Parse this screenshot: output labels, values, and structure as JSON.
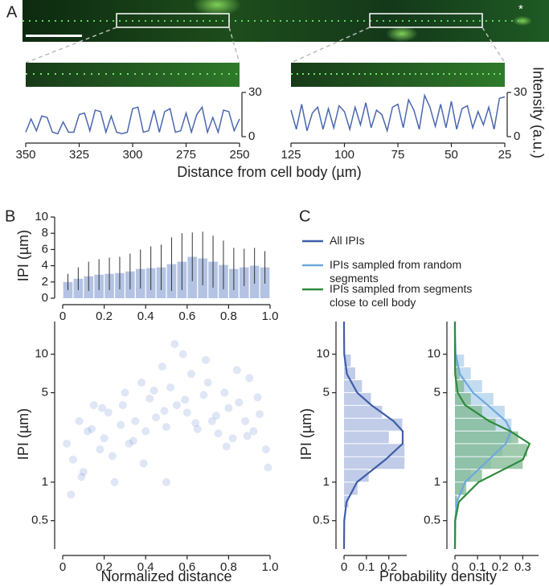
{
  "chart_data": [
    {
      "type": "line",
      "panel": "A",
      "annotation": "*",
      "xlabel": "Distance from cell body (µm)",
      "color": "#4a67b0",
      "x": [
        350,
        347.5,
        345,
        342.5,
        340,
        337.5,
        335,
        332.5,
        330,
        327.5,
        325,
        322.5,
        320,
        317.5,
        315,
        312.5,
        310,
        307.5,
        305,
        302.5,
        300,
        297.5,
        295,
        292.5,
        290,
        287.5,
        285,
        282.5,
        280,
        277.5,
        275,
        272.5,
        270,
        267.5,
        265,
        262.5,
        260,
        257.5,
        255,
        252.5,
        250
      ],
      "values": [
        3,
        12,
        4,
        14,
        13,
        3,
        2,
        10,
        3,
        3,
        15,
        16,
        4,
        18,
        17,
        3,
        14,
        3,
        2,
        3,
        19,
        20,
        3,
        4,
        18,
        3,
        17,
        19,
        3,
        4,
        16,
        3,
        15,
        20,
        3,
        13,
        3,
        18,
        17,
        4,
        12
      ],
      "xlim": [
        350,
        250
      ],
      "xticks": [
        350,
        325,
        300,
        275,
        250
      ],
      "ylim": [
        0,
        30
      ],
      "yticks": [
        0,
        30
      ]
    },
    {
      "type": "line",
      "ylabel": "Intensity (a.u.)",
      "color": "#4a67b0",
      "x": [
        125,
        122.5,
        120,
        117.5,
        115,
        112.5,
        110,
        107.5,
        105,
        102.5,
        100,
        97.5,
        95,
        92.5,
        90,
        87.5,
        85,
        82.5,
        80,
        77.5,
        75,
        72.5,
        70,
        67.5,
        65,
        62.5,
        60,
        57.5,
        55,
        52.5,
        50,
        47.5,
        45,
        42.5,
        40,
        37.5,
        35,
        32.5,
        30,
        27.5,
        25
      ],
      "values": [
        18,
        5,
        22,
        4,
        16,
        20,
        5,
        19,
        6,
        21,
        17,
        5,
        20,
        8,
        23,
        6,
        18,
        15,
        4,
        20,
        22,
        6,
        25,
        18,
        5,
        28,
        20,
        7,
        22,
        6,
        24,
        5,
        19,
        21,
        6,
        17,
        8,
        20,
        5,
        26,
        27
      ],
      "xlim": [
        125,
        25
      ],
      "xticks": [
        125,
        100,
        75,
        50,
        25
      ],
      "ylim": [
        0,
        30
      ],
      "yticks": [
        0,
        30
      ]
    },
    {
      "type": "bar",
      "panel": "B",
      "ylabel": "IPI (µm)",
      "color": "#b4c3e3",
      "error_color": "#333333",
      "x": [
        0.025,
        0.075,
        0.125,
        0.175,
        0.225,
        0.275,
        0.325,
        0.375,
        0.425,
        0.475,
        0.525,
        0.575,
        0.625,
        0.675,
        0.725,
        0.775,
        0.825,
        0.875,
        0.925,
        0.975
      ],
      "values": [
        2.0,
        2.4,
        2.7,
        2.9,
        3.0,
        3.1,
        3.3,
        3.6,
        3.7,
        3.8,
        4.2,
        4.5,
        5.1,
        4.9,
        4.5,
        4.1,
        3.6,
        3.8,
        4.0,
        3.8
      ],
      "errors": [
        1.0,
        1.4,
        1.8,
        1.9,
        2.0,
        2.0,
        2.2,
        2.4,
        2.7,
        2.8,
        3.3,
        3.5,
        3.0,
        3.3,
        3.2,
        3.0,
        2.6,
        2.3,
        2.2,
        2.0
      ],
      "xlim": [
        0,
        1
      ],
      "xticks": [
        0,
        0.2,
        0.4,
        0.6,
        0.8,
        {
          "value": 1,
          "label": "1.0"
        }
      ],
      "ylim": [
        0,
        10
      ],
      "yticks": [
        0,
        2,
        4,
        6,
        8,
        10
      ]
    },
    {
      "type": "scatter",
      "xlabel": "Normalized distance",
      "ylabel": "IPI (µm)",
      "color": "#6f8bd0",
      "ylog": true,
      "x": [
        0.02,
        0.05,
        0.08,
        0.1,
        0.12,
        0.15,
        0.18,
        0.2,
        0.22,
        0.25,
        0.28,
        0.3,
        0.32,
        0.35,
        0.38,
        0.4,
        0.42,
        0.45,
        0.48,
        0.5,
        0.52,
        0.55,
        0.58,
        0.6,
        0.62,
        0.65,
        0.68,
        0.7,
        0.72,
        0.75,
        0.78,
        0.8,
        0.82,
        0.85,
        0.88,
        0.9,
        0.92,
        0.95,
        0.98,
        0.04,
        0.09,
        0.14,
        0.19,
        0.24,
        0.29,
        0.34,
        0.39,
        0.44,
        0.49,
        0.54,
        0.59,
        0.64,
        0.69,
        0.74,
        0.79,
        0.84,
        0.89,
        0.94,
        0.99,
        0.5
      ],
      "y": [
        2,
        1.5,
        3,
        1.2,
        2.5,
        4,
        1.8,
        2.2,
        3.5,
        1,
        2.8,
        5,
        2,
        3,
        6,
        2.5,
        4.5,
        3.2,
        8,
        2.7,
        5.5,
        4,
        10,
        3.5,
        7,
        2.6,
        4.8,
        6,
        3,
        2.4,
        5,
        3.8,
        2.2,
        4.2,
        3,
        6.5,
        2.5,
        3.4,
        1.8,
        0.8,
        1.1,
        2.6,
        3.8,
        1.6,
        4,
        2.1,
        1.4,
        5.2,
        3.6,
        12,
        4.4,
        2.9,
        9,
        3.3,
        1.9,
        7.5,
        2.3,
        4.6,
        1.3,
        1.0
      ],
      "xlim": [
        0,
        1
      ],
      "xticks": [
        0,
        0.2,
        0.4,
        0.6,
        0.8,
        {
          "value": 1,
          "label": "1.0"
        }
      ],
      "ylim": [
        0.3,
        18
      ],
      "yticks": [
        0.5,
        1,
        5,
        10
      ]
    },
    {
      "type": "histogram",
      "panel": "C",
      "orientation": "horizontal",
      "ylog": true,
      "xlabel": "Probability density",
      "ylabel": "IPI (µm)",
      "bins": [
        0.63,
        0.79,
        1,
        1.26,
        1.58,
        2,
        2.51,
        3.16,
        3.98,
        5.01,
        6.31,
        7.94,
        10
      ],
      "series": [
        {
          "name": "All IPIs",
          "color": "#3f5ea8",
          "bar_color": "#b9c6e6",
          "values": [
            0.02,
            0.06,
            0.11,
            0.27,
            0.27,
            0.2,
            0.26,
            0.17,
            0.12,
            0.08,
            0.05,
            0.03
          ],
          "curve_y": [
            0.3,
            0.5,
            0.7,
            1,
            1.5,
            2,
            2.5,
            3,
            4,
            5,
            7,
            10,
            15,
            18
          ],
          "curve_values": [
            0,
            0.001,
            0.011,
            0.058,
            0.185,
            0.262,
            0.262,
            0.221,
            0.122,
            0.059,
            0.013,
            0.001,
            0,
            0
          ]
        }
      ],
      "xlim": [
        0,
        0.28
      ],
      "xticks": [
        0,
        0.1,
        0.2
      ],
      "ylim": [
        0.3,
        18
      ],
      "yticks": [
        0.5,
        1,
        5,
        10
      ]
    },
    {
      "type": "histogram",
      "orientation": "horizontal",
      "ylog": true,
      "bins": [
        0.63,
        0.79,
        1,
        1.26,
        1.58,
        2,
        2.51,
        3.16,
        3.98,
        5.01,
        6.31,
        7.94,
        10
      ],
      "series": [
        {
          "name": "IPIs sampled from random segments",
          "color": "#6ea8dc",
          "bar_color": "#bcd8ee",
          "values": [
            0.01,
            0.04,
            0.07,
            0.16,
            0.21,
            0.25,
            0.25,
            0.22,
            0.17,
            0.12,
            0.07,
            0.04
          ],
          "curve_y": [
            0.3,
            0.5,
            0.7,
            1,
            1.5,
            2,
            2.5,
            3,
            4,
            5,
            7,
            10,
            15,
            18
          ],
          "curve_values": [
            0,
            0.001,
            0.008,
            0.045,
            0.15,
            0.225,
            0.248,
            0.225,
            0.145,
            0.08,
            0.022,
            0.003,
            0,
            0
          ]
        },
        {
          "name": "IPIs sampled from segments close to cell body",
          "color": "#2e8a3c",
          "bar_color": "#7fb892",
          "values": [
            0.01,
            0.05,
            0.12,
            0.3,
            0.32,
            0.28,
            0.18,
            0.12,
            0.07,
            0.04,
            0.02,
            0.01
          ],
          "curve_y": [
            0.3,
            0.5,
            0.7,
            1,
            1.5,
            2,
            2.5,
            3,
            4,
            5,
            7,
            10,
            15,
            18
          ],
          "curve_values": [
            0,
            0.001,
            0.017,
            0.105,
            0.301,
            0.33,
            0.245,
            0.151,
            0.045,
            0.012,
            0.001,
            0,
            0,
            0
          ]
        }
      ],
      "xlim": [
        0,
        0.37
      ],
      "xticks": [
        0,
        0.1,
        0.2,
        0.3
      ],
      "ylim": [
        0.3,
        18
      ],
      "yticks": [
        0.5,
        1,
        5,
        10
      ]
    }
  ]
}
